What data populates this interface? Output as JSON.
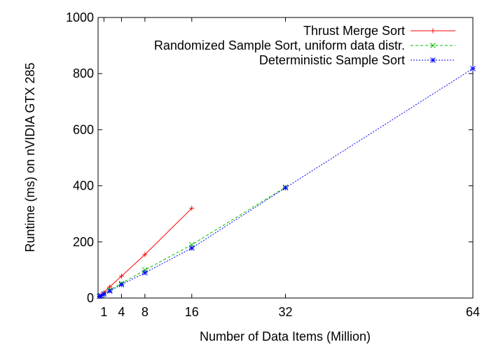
{
  "chart_data": {
    "type": "line",
    "title": "",
    "xlabel": "Number of Data Items (Million)",
    "ylabel": "Runtime (ms) on nVIDIA GTX 285",
    "xlim": [
      0,
      64
    ],
    "ylim": [
      0,
      1000
    ],
    "xticks": [
      1,
      4,
      8,
      16,
      32,
      64
    ],
    "yticks": [
      0,
      200,
      400,
      600,
      800,
      1000
    ],
    "grid": false,
    "legend_position": "top-right",
    "series": [
      {
        "name": "Thrust Merge Sort",
        "color": "#ff0000",
        "dash": "solid",
        "marker": "plus",
        "x": [
          0.25,
          0.5,
          1,
          2,
          4,
          8,
          16
        ],
        "y": [
          5,
          10,
          20,
          40,
          78,
          155,
          320
        ]
      },
      {
        "name": "Randomized Sample Sort, uniform data distr.",
        "color": "#00c000",
        "dash": "dashed",
        "marker": "cross",
        "x": [
          0.25,
          0.5,
          1,
          2,
          4,
          8,
          16,
          32
        ],
        "y": [
          6,
          8,
          15,
          28,
          52,
          100,
          190,
          395
        ]
      },
      {
        "name": "Deterministic Sample Sort",
        "color": "#0000ff",
        "dash": "dotted",
        "marker": "star",
        "x": [
          0.25,
          0.5,
          1,
          2,
          4,
          8,
          16,
          32,
          64
        ],
        "y": [
          6,
          8,
          14,
          25,
          48,
          90,
          178,
          393,
          818
        ]
      }
    ]
  }
}
